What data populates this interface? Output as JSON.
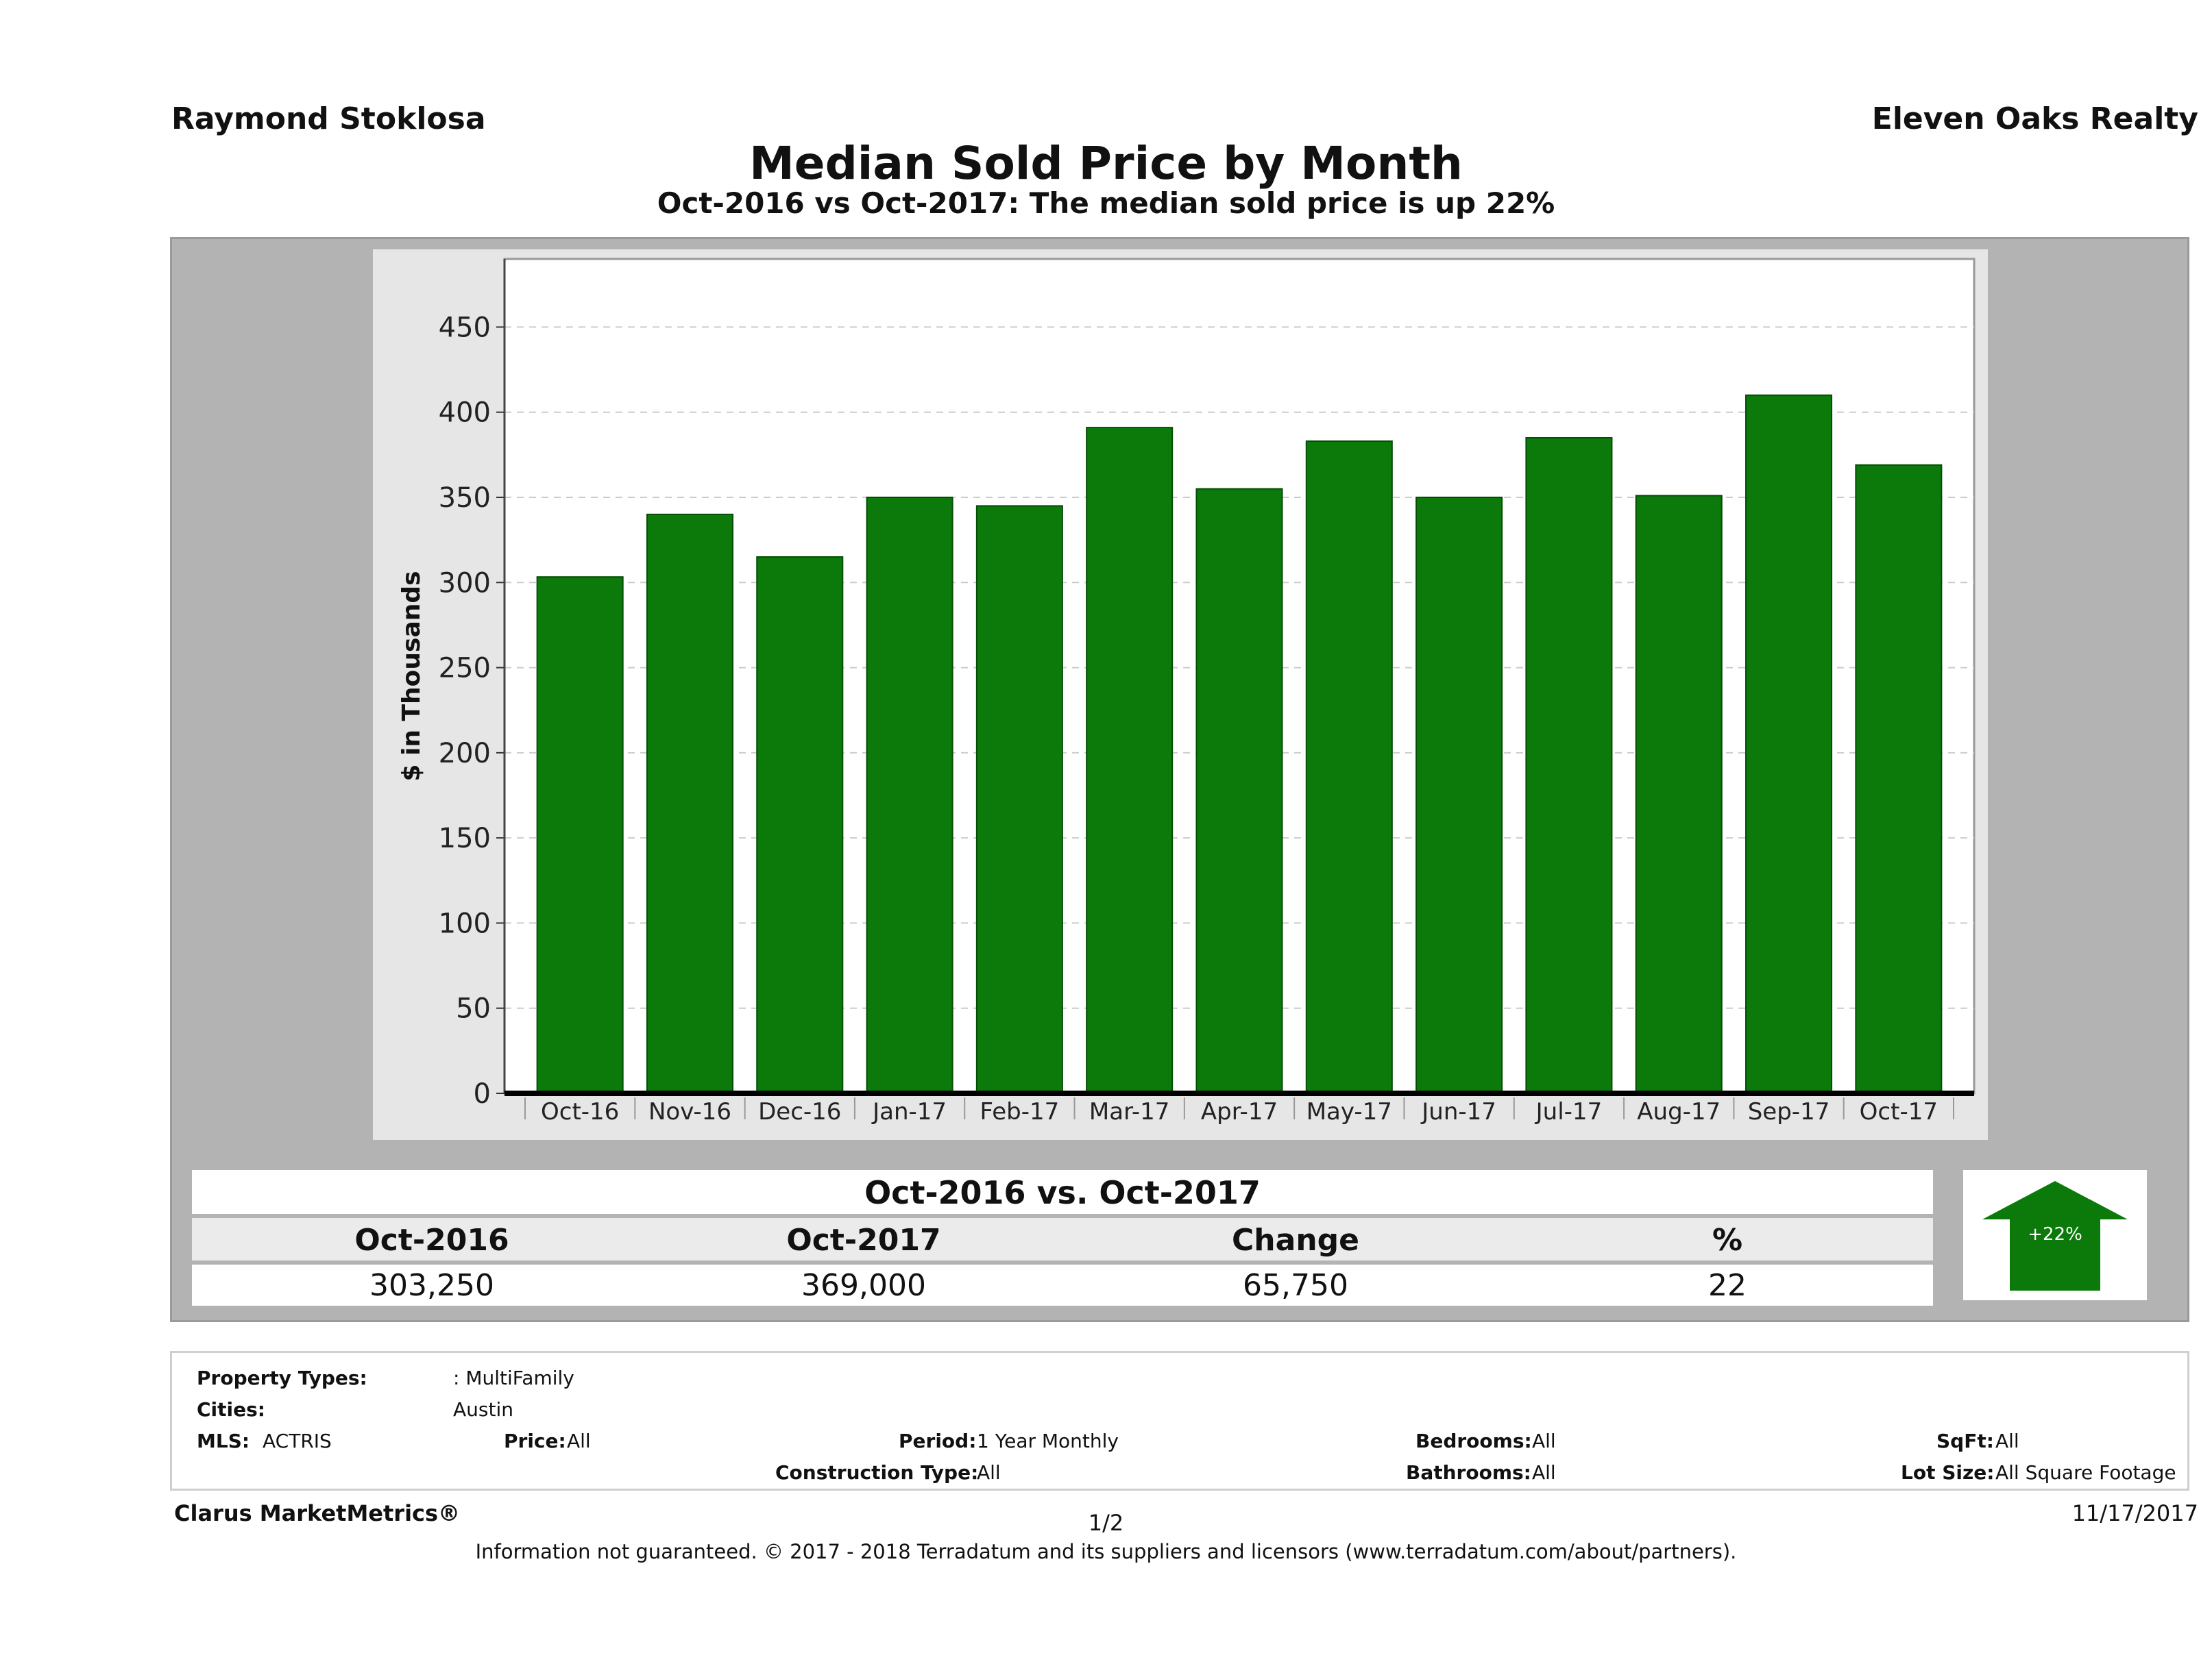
{
  "header": {
    "agent_name": "Raymond Stoklosa",
    "brokerage": "Eleven Oaks Realty",
    "title": "Median Sold Price by Month",
    "subtitle": "Oct-2016 vs Oct-2017: The median sold price is up 22%"
  },
  "chart_data": {
    "type": "bar",
    "categories": [
      "Oct-16",
      "Nov-16",
      "Dec-16",
      "Jan-17",
      "Feb-17",
      "Mar-17",
      "Apr-17",
      "May-17",
      "Jun-17",
      "Jul-17",
      "Aug-17",
      "Sep-17",
      "Oct-17"
    ],
    "values": [
      303.25,
      340,
      315,
      350,
      345,
      391,
      355,
      383,
      350,
      385,
      351,
      410,
      369
    ],
    "ylabel": "$ in Thousands",
    "xlabel": "",
    "ylim": [
      0,
      450
    ],
    "yticks": [
      0,
      50,
      100,
      150,
      200,
      250,
      300,
      350,
      400,
      450
    ],
    "grid": true,
    "bar_color": "#0b7a0b"
  },
  "comparison": {
    "title": "Oct-2016 vs. Oct-2017",
    "headers": [
      "Oct-2016",
      "Oct-2017",
      "Change",
      "%"
    ],
    "values": [
      "303,250",
      "369,000",
      "65,750",
      "22"
    ],
    "arrow_label": "+22%",
    "arrow_direction": "up",
    "arrow_color": "#0b7a0b"
  },
  "filters": {
    "property_types_label": "Property Types:",
    "property_types_value": ": MultiFamily",
    "cities_label": "Cities:",
    "cities_value": "Austin",
    "mls_label": "MLS:",
    "mls_value": "ACTRIS",
    "price_label": "Price:",
    "price_value": "All",
    "period_label": "Period:",
    "period_value": "1 Year Monthly",
    "construction_label": "Construction Type:",
    "construction_value": "All",
    "bedrooms_label": "Bedrooms:",
    "bedrooms_value": "All",
    "bathrooms_label": "Bathrooms:",
    "bathrooms_value": "All",
    "sqft_label": "SqFt:",
    "sqft_value": "All",
    "lot_size_label": "Lot Size:",
    "lot_size_value": "All Square Footage"
  },
  "footer": {
    "brand": "Clarus MarketMetrics®",
    "page": "1/2",
    "date": "11/17/2017",
    "disclaimer": "Information not guaranteed. © 2017 - 2018 Terradatum and its suppliers and licensors (www.terradatum.com/about/partners)."
  }
}
